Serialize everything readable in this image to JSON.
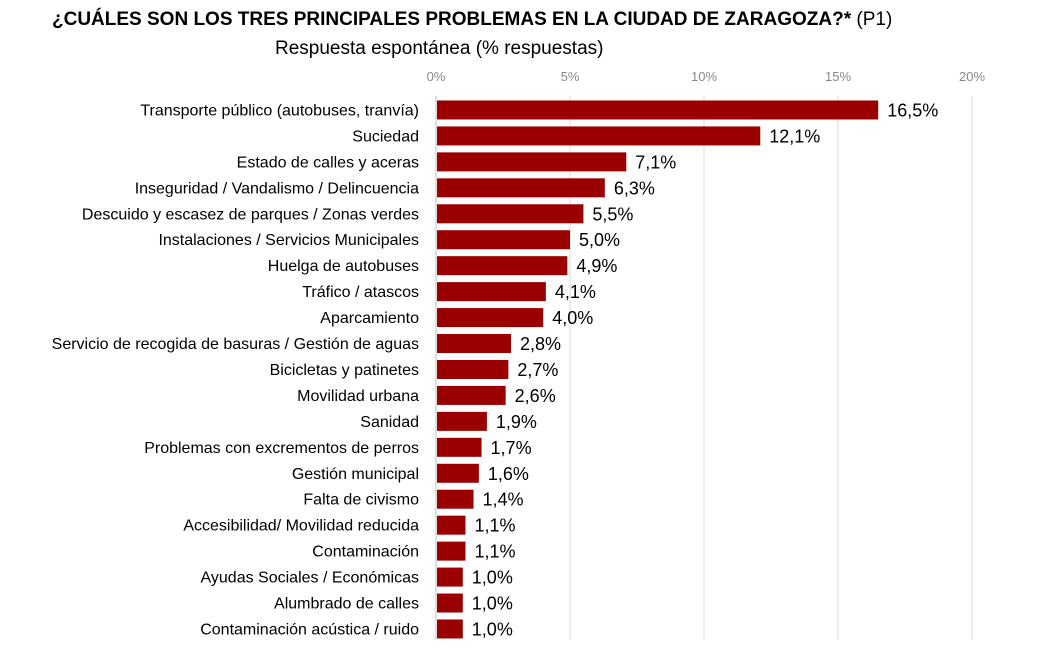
{
  "title_main": "¿CUÁLES SON LOS TRES PRINCIPALES PROBLEMAS EN LA CIUDAD DE ZARAGOZA?*",
  "title_suffix": " (P1)",
  "subtitle": "Respuesta espontánea (% respuestas)",
  "chart_data": {
    "type": "bar",
    "orientation": "horizontal",
    "title": "¿CUÁLES SON LOS TRES PRINCIPALES PROBLEMAS EN LA CIUDAD DE ZARAGOZA?* (P1)",
    "subtitle": "Respuesta espontánea (% respuestas)",
    "categories": [
      "Transporte público (autobuses, tranvía)",
      "Suciedad",
      "Estado de calles y aceras",
      "Inseguridad / Vandalismo / Delincuencia",
      "Descuido y escasez de parques / Zonas verdes",
      "Instalaciones / Servicios Municipales",
      "Huelga de autobuses",
      "Tráfico / atascos",
      "Aparcamiento",
      "Servicio de recogida de basuras / Gestión de aguas",
      "Bicicletas y patinetes",
      "Movilidad urbana",
      "Sanidad",
      "Problemas con excrementos de perros",
      "Gestión municipal",
      "Falta de civismo",
      "Accesibilidad/ Movilidad reducida",
      "Contaminación",
      "Ayudas Sociales / Económicas",
      "Alumbrado de calles",
      "Contaminación acústica / ruido"
    ],
    "values": [
      16.5,
      12.1,
      7.1,
      6.3,
      5.5,
      5.0,
      4.9,
      4.1,
      4.0,
      2.8,
      2.7,
      2.6,
      1.9,
      1.7,
      1.6,
      1.4,
      1.1,
      1.1,
      1.0,
      1.0,
      1.0
    ],
    "value_labels": [
      "16,5%",
      "12,1%",
      "7,1%",
      "6,3%",
      "5,5%",
      "5,0%",
      "4,9%",
      "4,1%",
      "4,0%",
      "2,8%",
      "2,7%",
      "2,6%",
      "1,9%",
      "1,7%",
      "1,6%",
      "1,4%",
      "1,1%",
      "1,1%",
      "1,0%",
      "1,0%",
      "1,0%"
    ],
    "xlim": [
      0,
      20
    ],
    "ticks": [
      0,
      5,
      10,
      15,
      20
    ],
    "tick_labels": [
      "0%",
      "5%",
      "10%",
      "15%",
      "20%"
    ],
    "tick_position": "top",
    "grid": true,
    "legend": "none",
    "bar_color": "#9b0000"
  }
}
